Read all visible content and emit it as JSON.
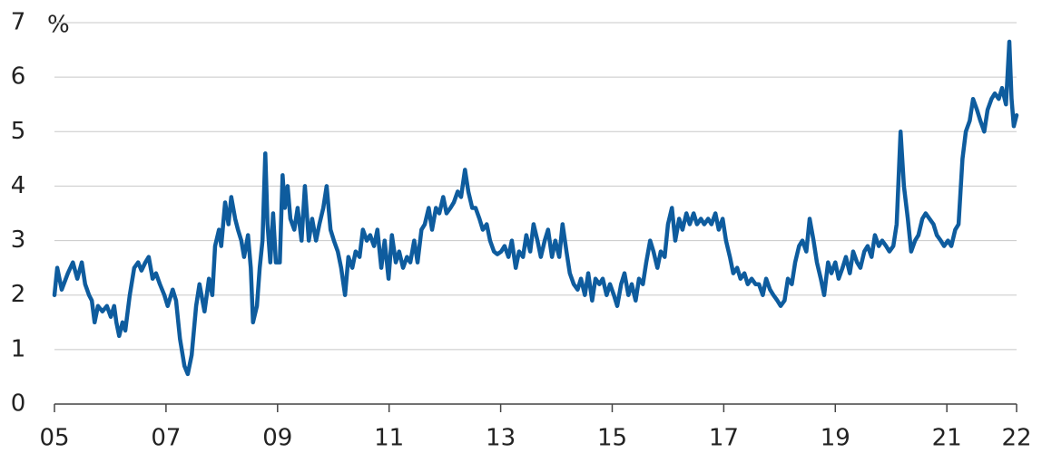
{
  "chart_data": {
    "type": "line",
    "y_label": "%",
    "x": [
      2005.0,
      2005.05,
      2005.13,
      2005.24,
      2005.33,
      2005.41,
      2005.49,
      2005.55,
      2005.62,
      2005.67,
      2005.72,
      2005.78,
      2005.86,
      2005.94,
      2006.01,
      2006.07,
      2006.11,
      2006.16,
      2006.22,
      2006.27,
      2006.35,
      2006.43,
      2006.5,
      2006.56,
      2006.63,
      2006.69,
      2006.76,
      2006.82,
      2006.89,
      2006.97,
      2007.03,
      2007.12,
      2007.18,
      2007.25,
      2007.33,
      2007.39,
      2007.46,
      2007.54,
      2007.6,
      2007.69,
      2007.77,
      2007.83,
      2007.88,
      2007.95,
      2007.99,
      2008.06,
      2008.12,
      2008.17,
      2008.24,
      2008.29,
      2008.35,
      2008.4,
      2008.47,
      2008.52,
      2008.56,
      2008.63,
      2008.68,
      2008.73,
      2008.78,
      2008.82,
      2008.87,
      2008.92,
      2008.97,
      2009.04,
      2009.09,
      2009.13,
      2009.18,
      2009.23,
      2009.3,
      2009.36,
      2009.43,
      2009.49,
      2009.56,
      2009.62,
      2009.69,
      2009.75,
      2009.82,
      2009.88,
      2009.95,
      2010.01,
      2010.08,
      2010.14,
      2010.21,
      2010.27,
      2010.34,
      2010.4,
      2010.47,
      2010.53,
      2010.6,
      2010.66,
      2010.73,
      2010.79,
      2010.86,
      2010.92,
      2010.99,
      2011.05,
      2011.12,
      2011.18,
      2011.25,
      2011.32,
      2011.38,
      2011.45,
      2011.51,
      2011.58,
      2011.64,
      2011.71,
      2011.77,
      2011.84,
      2011.9,
      2011.97,
      2012.03,
      2012.1,
      2012.16,
      2012.23,
      2012.29,
      2012.36,
      2012.42,
      2012.49,
      2012.55,
      2012.62,
      2012.68,
      2012.75,
      2012.81,
      2012.88,
      2012.94,
      2013.01,
      2013.07,
      2013.14,
      2013.2,
      2013.27,
      2013.33,
      2013.4,
      2013.46,
      2013.53,
      2013.59,
      2013.66,
      2013.72,
      2013.79,
      2013.85,
      2013.92,
      2013.98,
      2014.05,
      2014.11,
      2014.18,
      2014.24,
      2014.31,
      2014.38,
      2014.44,
      2014.51,
      2014.57,
      2014.64,
      2014.7,
      2014.77,
      2014.83,
      2014.9,
      2014.96,
      2015.03,
      2015.09,
      2015.16,
      2015.22,
      2015.29,
      2015.35,
      2015.42,
      2015.48,
      2015.55,
      2015.61,
      2015.68,
      2015.74,
      2015.81,
      2015.87,
      2015.94,
      2016.0,
      2016.07,
      2016.13,
      2016.2,
      2016.26,
      2016.33,
      2016.39,
      2016.46,
      2016.52,
      2016.59,
      2016.65,
      2016.72,
      2016.78,
      2016.85,
      2016.91,
      2016.98,
      2017.04,
      2017.11,
      2017.17,
      2017.24,
      2017.3,
      2017.37,
      2017.43,
      2017.5,
      2017.57,
      2017.63,
      2017.7,
      2017.76,
      2017.83,
      2017.89,
      2017.96,
      2018.02,
      2018.09,
      2018.15,
      2018.22,
      2018.28,
      2018.35,
      2018.41,
      2018.48,
      2018.54,
      2018.61,
      2018.67,
      2018.74,
      2018.8,
      2018.87,
      2018.93,
      2019.0,
      2019.06,
      2019.13,
      2019.19,
      2019.26,
      2019.32,
      2019.39,
      2019.45,
      2019.52,
      2019.58,
      2019.65,
      2019.71,
      2019.78,
      2019.84,
      2019.91,
      2019.97,
      2020.04,
      2020.1,
      2020.17,
      2020.23,
      2020.3,
      2020.36,
      2020.43,
      2020.49,
      2020.56,
      2020.62,
      2020.69,
      2020.76,
      2020.82,
      2020.89,
      2020.95,
      2021.02,
      2021.08,
      2021.15,
      2021.21,
      2021.28,
      2021.34,
      2021.41,
      2021.47,
      2021.54,
      2021.6,
      2021.67,
      2021.73,
      2021.8,
      2021.86,
      2021.93,
      2021.99,
      2022.06,
      2022.12,
      2022.16,
      2022.2,
      2022.25
    ],
    "series": [
      {
        "color": "#0e5c9e",
        "values": [
          2.0,
          2.5,
          2.1,
          2.4,
          2.6,
          2.3,
          2.6,
          2.2,
          2.0,
          1.9,
          1.5,
          1.8,
          1.7,
          1.8,
          1.6,
          1.8,
          1.5,
          1.25,
          1.5,
          1.35,
          2.0,
          2.5,
          2.6,
          2.45,
          2.6,
          2.7,
          2.3,
          2.4,
          2.2,
          2.0,
          1.8,
          2.1,
          1.9,
          1.2,
          0.7,
          0.55,
          0.9,
          1.8,
          2.2,
          1.7,
          2.3,
          2.0,
          2.9,
          3.2,
          2.9,
          3.7,
          3.3,
          3.8,
          3.4,
          3.2,
          3.0,
          2.7,
          3.1,
          2.5,
          1.5,
          1.8,
          2.5,
          3.0,
          4.6,
          3.3,
          2.6,
          3.5,
          2.6,
          2.6,
          4.2,
          3.6,
          4.0,
          3.4,
          3.2,
          3.6,
          3.0,
          4.0,
          3.0,
          3.4,
          3.0,
          3.3,
          3.6,
          4.0,
          3.2,
          3.0,
          2.8,
          2.5,
          2.0,
          2.7,
          2.5,
          2.8,
          2.7,
          3.2,
          3.0,
          3.1,
          2.9,
          3.2,
          2.5,
          3.0,
          2.3,
          3.1,
          2.6,
          2.8,
          2.5,
          2.7,
          2.6,
          3.0,
          2.6,
          3.2,
          3.3,
          3.6,
          3.2,
          3.6,
          3.5,
          3.8,
          3.5,
          3.6,
          3.7,
          3.9,
          3.8,
          4.3,
          3.9,
          3.6,
          3.6,
          3.4,
          3.2,
          3.3,
          3.0,
          2.8,
          2.75,
          2.8,
          2.9,
          2.7,
          3.0,
          2.5,
          2.8,
          2.7,
          3.1,
          2.8,
          3.3,
          3.0,
          2.7,
          3.0,
          3.2,
          2.7,
          3.0,
          2.7,
          3.3,
          2.8,
          2.4,
          2.2,
          2.1,
          2.3,
          2.0,
          2.4,
          1.9,
          2.3,
          2.2,
          2.3,
          2.0,
          2.2,
          2.0,
          1.8,
          2.2,
          2.4,
          2.0,
          2.2,
          1.9,
          2.3,
          2.2,
          2.6,
          3.0,
          2.8,
          2.5,
          2.8,
          2.7,
          3.3,
          3.6,
          3.0,
          3.4,
          3.2,
          3.5,
          3.3,
          3.5,
          3.3,
          3.4,
          3.3,
          3.4,
          3.3,
          3.5,
          3.2,
          3.4,
          3.0,
          2.7,
          2.4,
          2.5,
          2.3,
          2.4,
          2.2,
          2.3,
          2.2,
          2.2,
          2.0,
          2.3,
          2.1,
          2.0,
          1.9,
          1.8,
          1.9,
          2.3,
          2.2,
          2.6,
          2.9,
          3.0,
          2.8,
          3.4,
          3.0,
          2.6,
          2.3,
          2.0,
          2.6,
          2.4,
          2.6,
          2.3,
          2.5,
          2.7,
          2.4,
          2.8,
          2.6,
          2.5,
          2.8,
          2.9,
          2.7,
          3.1,
          2.9,
          3.0,
          2.9,
          2.8,
          2.9,
          3.3,
          5.0,
          4.0,
          3.4,
          2.8,
          3.0,
          3.1,
          3.4,
          3.5,
          3.4,
          3.3,
          3.1,
          3.0,
          2.9,
          3.0,
          2.9,
          3.2,
          3.3,
          4.5,
          5.0,
          5.2,
          5.6,
          5.4,
          5.2,
          5.0,
          5.4,
          5.6,
          5.7,
          5.6,
          5.8,
          5.5,
          6.65,
          5.6,
          5.1,
          5.3
        ]
      }
    ],
    "xlim": [
      2005,
      2022.25
    ],
    "xticks": [
      {
        "value": 2005,
        "label": "05"
      },
      {
        "value": 2007,
        "label": "07"
      },
      {
        "value": 2009,
        "label": "09"
      },
      {
        "value": 2011,
        "label": "11"
      },
      {
        "value": 2013,
        "label": "13"
      },
      {
        "value": 2015,
        "label": "15"
      },
      {
        "value": 2017,
        "label": "17"
      },
      {
        "value": 2019,
        "label": "19"
      },
      {
        "value": 2021,
        "label": "21"
      },
      {
        "value": 2022.25,
        "label": "22"
      }
    ],
    "ylim": [
      0,
      7
    ],
    "yticks": [
      0,
      1,
      2,
      3,
      4,
      5,
      6,
      7
    ],
    "grid": true
  }
}
